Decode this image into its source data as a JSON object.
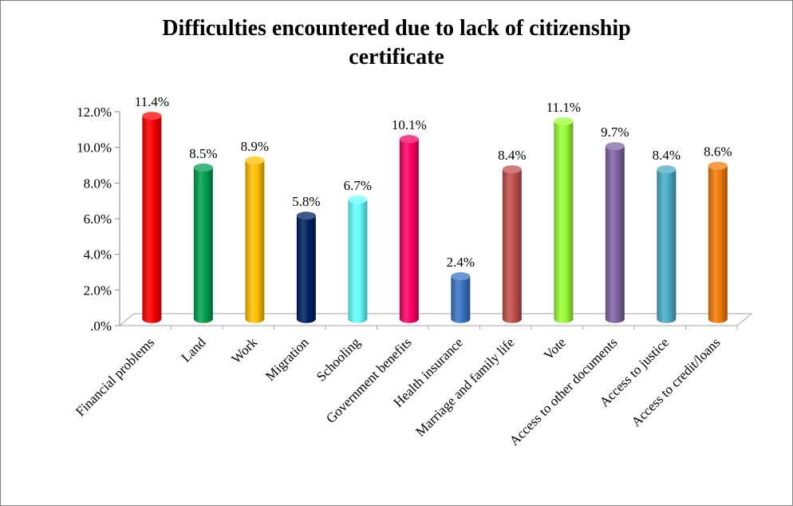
{
  "chart_data": {
    "type": "bar",
    "title_lines": [
      "Difficulties encountered due to lack of citizenship",
      "certificate"
    ],
    "categories": [
      "Financial problems",
      "Land",
      "Work",
      "Migration",
      "Schooling",
      "Government benefits",
      "Health insurance",
      "Marriage and family life",
      "Vote",
      "Access to other documents",
      "Access to justice",
      "Access to credit/loans"
    ],
    "values": [
      11.4,
      8.5,
      8.9,
      5.8,
      6.7,
      10.1,
      2.4,
      8.4,
      11.1,
      9.7,
      8.4,
      8.6
    ],
    "data_labels": [
      "11.4%",
      "8.5%",
      "8.9%",
      "5.8%",
      "6.7%",
      "10.1%",
      "2.4%",
      "8.4%",
      "11.1%",
      "9.7%",
      "8.4%",
      "8.6%"
    ],
    "colors": [
      "#ff0000",
      "#00a050",
      "#ffc000",
      "#002060",
      "#66ffff",
      "#ff0066",
      "#3a75c4",
      "#c0504d",
      "#99ff33",
      "#8064a2",
      "#4bacc6",
      "#f27b0a"
    ],
    "yticks": [
      ".0%",
      "2.0%",
      "4.0%",
      "6.0%",
      "8.0%",
      "10.0%",
      "12.0%"
    ],
    "ylim": [
      0,
      12
    ],
    "gridlines": false,
    "legend": "none",
    "xlabel": "",
    "ylabel": ""
  }
}
